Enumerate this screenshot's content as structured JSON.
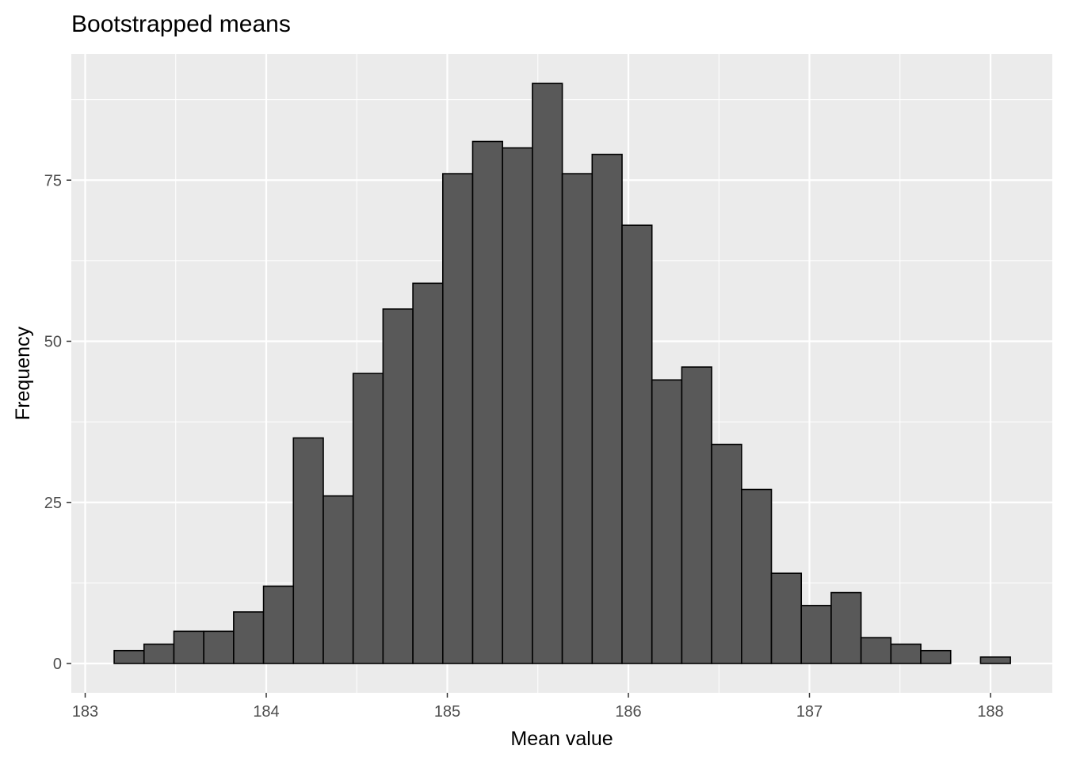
{
  "chart_data": {
    "type": "bar",
    "subtype": "histogram",
    "title": "Bootstrapped means",
    "xlabel": "Mean value",
    "ylabel": "Frequency",
    "xlim": [
      183.15,
      188.1
    ],
    "ylim": [
      0,
      90
    ],
    "x_ticks": [
      "183",
      "184",
      "185",
      "186",
      "187",
      "188"
    ],
    "y_ticks": [
      "0",
      "25",
      "50",
      "75"
    ],
    "x_tick_values": [
      183,
      184,
      185,
      186,
      187,
      188
    ],
    "y_tick_values": [
      0,
      25,
      50,
      75
    ],
    "bin_start": 183.16,
    "bin_width": 0.165,
    "values": [
      2,
      3,
      5,
      5,
      8,
      12,
      35,
      26,
      45,
      55,
      59,
      76,
      81,
      80,
      90,
      76,
      79,
      68,
      44,
      46,
      34,
      27,
      14,
      9,
      11,
      4,
      3,
      2,
      0,
      1
    ],
    "grid": true,
    "colors": {
      "panel": "#ebebeb",
      "grid": "#ffffff",
      "bar_fill": "#595959",
      "bar_stroke": "#000000",
      "tick_text": "#4d4d4d"
    }
  }
}
